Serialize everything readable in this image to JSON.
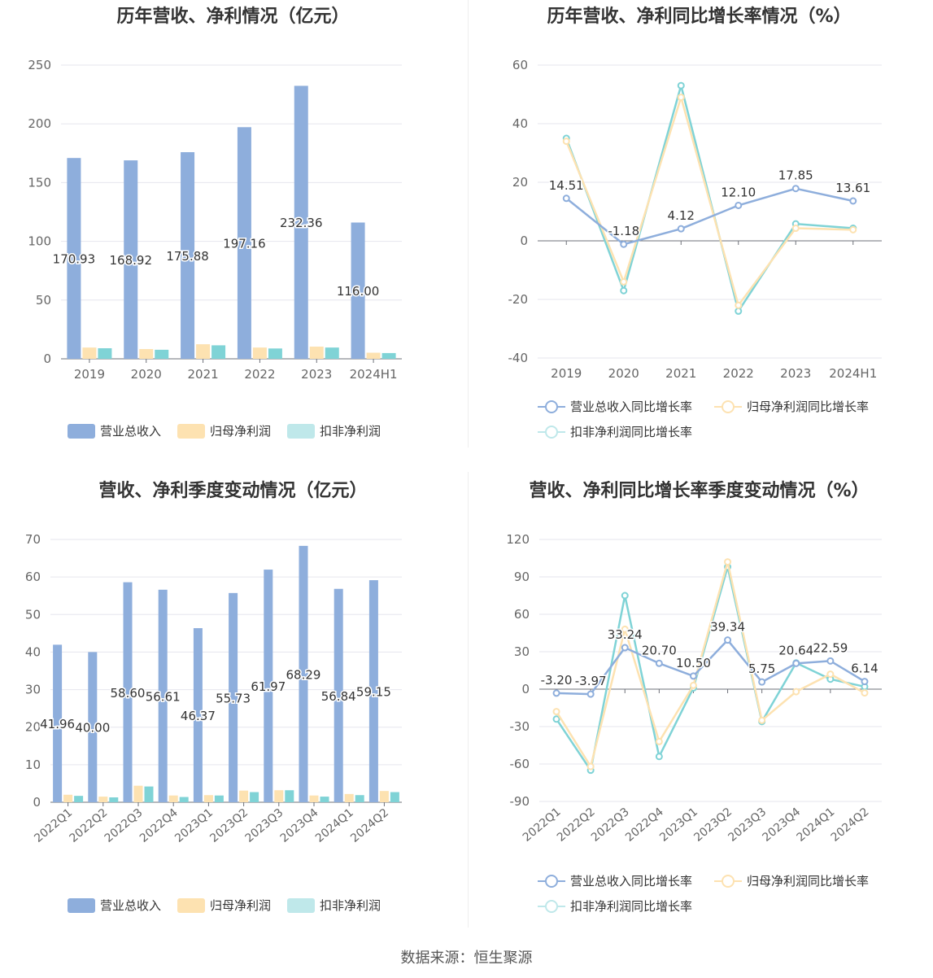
{
  "footer": "数据来源：恒生聚源",
  "colors": {
    "revenue": "#8eaedc",
    "parent": "#fde2b1",
    "deducted": "#7fd3d6",
    "axis": "#666666",
    "grid": "#e6e6ee"
  },
  "panels": {
    "annual_bar": {
      "title": "历年营收、净利情况（亿元）",
      "legend": [
        "营业总收入",
        "归母净利润",
        "扣非净利润"
      ]
    },
    "annual_growth": {
      "title": "历年营收、净利同比增长率情况（%）",
      "legend": [
        "营业总收入同比增长率",
        "归母净利润同比增长率",
        "扣非净利润同比增长率"
      ]
    },
    "quarter_bar": {
      "title": "营收、净利季度变动情况（亿元）",
      "legend": [
        "营业总收入",
        "归母净利润",
        "扣非净利润"
      ]
    },
    "quarter_growth": {
      "title": "营收、净利同比增长率季度变动情况（%）",
      "legend": [
        "营业总收入同比增长率",
        "归母净利润同比增长率",
        "扣非净利润同比增长率"
      ]
    }
  },
  "chart_data": [
    {
      "type": "bar",
      "title": "历年营收、净利情况（亿元）",
      "categories": [
        "2019",
        "2020",
        "2021",
        "2022",
        "2023",
        "2024H1"
      ],
      "ylim": [
        0,
        250
      ],
      "yticks": [
        0,
        50,
        100,
        150,
        200,
        250
      ],
      "series": [
        {
          "name": "营业总收入",
          "values": [
            170.93,
            168.92,
            175.88,
            197.16,
            232.36,
            116.0
          ],
          "labels": [
            "170.93",
            "168.92",
            "175.88",
            "197.16",
            "232.36",
            "116.00"
          ]
        },
        {
          "name": "归母净利润",
          "values": [
            9.6,
            8.3,
            12.4,
            9.6,
            10.4,
            5.2
          ]
        },
        {
          "name": "扣非净利润",
          "values": [
            9.0,
            7.7,
            11.5,
            8.8,
            9.6,
            4.9
          ]
        }
      ],
      "legend": "bottom",
      "grid": true
    },
    {
      "type": "line",
      "title": "历年营收、净利同比增长率情况（%）",
      "categories": [
        "2019",
        "2020",
        "2021",
        "2022",
        "2023",
        "2024H1"
      ],
      "ylim": [
        -40,
        60
      ],
      "yticks": [
        -40,
        -20,
        0,
        20,
        40,
        60
      ],
      "series": [
        {
          "name": "营业总收入同比增长率",
          "values": [
            14.51,
            -1.18,
            4.12,
            12.1,
            17.85,
            13.61
          ],
          "labels": [
            "14.51",
            "-1.18",
            "4.12",
            "12.10",
            "17.85",
            "13.61"
          ]
        },
        {
          "name": "归母净利润同比增长率",
          "values": [
            34,
            -14,
            49,
            -22,
            4.3,
            3.8
          ]
        },
        {
          "name": "扣非净利润同比增长率",
          "values": [
            35,
            -17,
            53,
            -24,
            5.8,
            4.3
          ]
        }
      ],
      "legend": "bottom",
      "grid": true
    },
    {
      "type": "bar",
      "title": "营收、净利季度变动情况（亿元）",
      "categories": [
        "2022Q1",
        "2022Q2",
        "2022Q3",
        "2022Q4",
        "2023Q1",
        "2023Q2",
        "2023Q3",
        "2023Q4",
        "2024Q1",
        "2024Q2"
      ],
      "ylim": [
        0,
        70
      ],
      "yticks": [
        0,
        10,
        20,
        30,
        40,
        50,
        60,
        70
      ],
      "series": [
        {
          "name": "营业总收入",
          "values": [
            41.96,
            40.0,
            58.6,
            56.61,
            46.37,
            55.73,
            61.97,
            68.29,
            56.84,
            59.15
          ],
          "labels": [
            "41.96",
            "40.00",
            "58.60",
            "56.61",
            "46.37",
            "55.73",
            "61.97",
            "68.29",
            "56.84",
            "59.15"
          ]
        },
        {
          "name": "归母净利润",
          "values": [
            2.0,
            1.5,
            4.4,
            1.8,
            1.9,
            3.1,
            3.2,
            1.8,
            2.2,
            3.0
          ]
        },
        {
          "name": "扣非净利润",
          "values": [
            1.7,
            1.3,
            4.2,
            1.4,
            1.8,
            2.7,
            3.2,
            1.5,
            1.9,
            2.7
          ]
        }
      ],
      "legend": "bottom",
      "grid": true
    },
    {
      "type": "line",
      "title": "营收、净利同比增长率季度变动情况（%）",
      "categories": [
        "2022Q1",
        "2022Q2",
        "2022Q3",
        "2022Q4",
        "2023Q1",
        "2023Q2",
        "2023Q3",
        "2023Q4",
        "2024Q1",
        "2024Q2"
      ],
      "ylim": [
        -90,
        120
      ],
      "yticks": [
        -90,
        -60,
        -30,
        0,
        30,
        60,
        90,
        120
      ],
      "series": [
        {
          "name": "营业总收入同比增长率",
          "values": [
            -3.2,
            -3.97,
            33.24,
            20.7,
            10.5,
            39.34,
            5.75,
            20.64,
            22.59,
            6.14
          ],
          "labels": [
            "-3.20",
            "-3.97",
            "33.24",
            "20.70",
            "10.50",
            "39.34",
            "5.75",
            "20.64",
            "22.59",
            "6.14"
          ]
        },
        {
          "name": "归母净利润同比增长率",
          "values": [
            -18,
            -62,
            48,
            -42,
            3,
            102,
            -25,
            -2,
            12,
            -3
          ]
        },
        {
          "name": "扣非净利润同比增长率",
          "values": [
            -24,
            -65,
            75,
            -54,
            1,
            98,
            -26,
            21,
            8,
            2
          ]
        }
      ],
      "legend": "bottom",
      "grid": true
    }
  ]
}
